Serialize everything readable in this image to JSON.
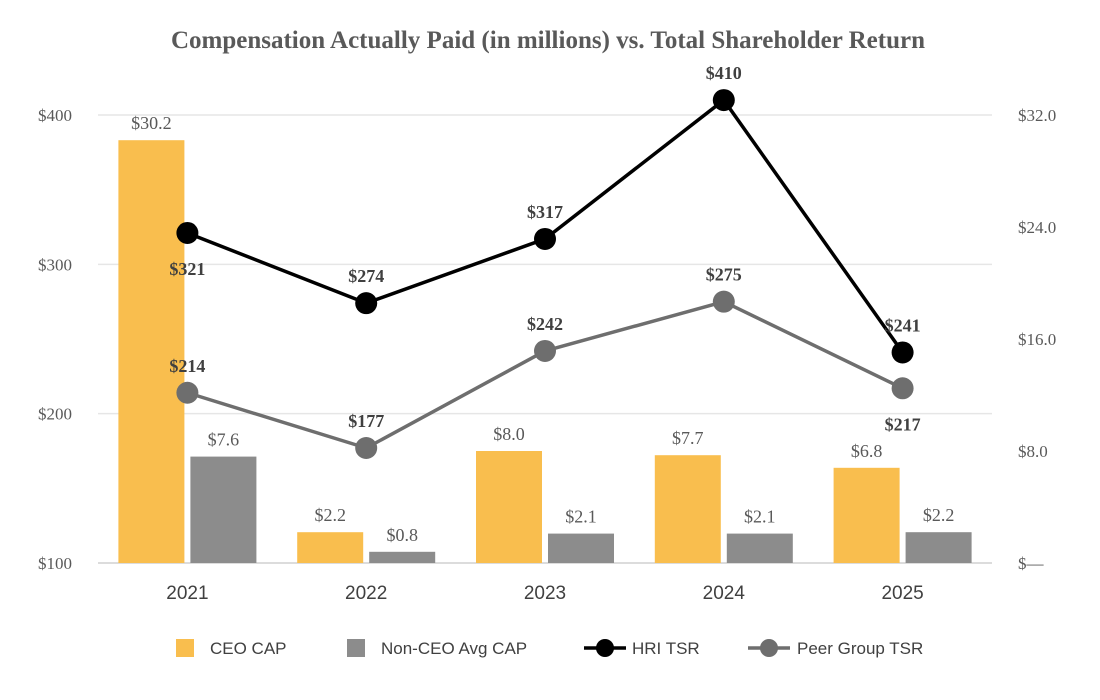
{
  "chart_data": {
    "type": "bar",
    "title": "Compensation Actually Paid (in millions) vs. Total Shareholder Return",
    "categories": [
      "2021",
      "2022",
      "2023",
      "2024",
      "2025"
    ],
    "left_axis": {
      "range": [
        100,
        400
      ],
      "ticks": [
        100,
        200,
        300,
        400
      ],
      "tick_labels": [
        "$100",
        "$200",
        "$300",
        "$400"
      ]
    },
    "right_axis": {
      "range": [
        0,
        32
      ],
      "ticks": [
        0,
        8,
        16,
        24,
        32
      ],
      "tick_labels": [
        "$—",
        "$8.0",
        "$16.0",
        "$24.0",
        "$32.0"
      ]
    },
    "bar_series": [
      {
        "name": "CEO CAP",
        "color": "#F9BE4E",
        "values": [
          30.2,
          2.2,
          8.0,
          7.7,
          6.8
        ],
        "labels": [
          "$30.2",
          "$2.2",
          "$8.0",
          "$7.7",
          "$6.8"
        ]
      },
      {
        "name": "Non-CEO Avg CAP",
        "color": "#8C8C8C",
        "values": [
          7.6,
          0.8,
          2.1,
          2.1,
          2.2
        ],
        "labels": [
          "$7.6",
          "$0.8",
          "$2.1",
          "$2.1",
          "$2.2"
        ]
      }
    ],
    "line_series": [
      {
        "name": "HRI TSR",
        "color": "#000000",
        "values": [
          321,
          274,
          317,
          410,
          241
        ],
        "labels": [
          "$321",
          "$274",
          "$317",
          "$410",
          "$241"
        ],
        "label_side": [
          "below",
          "above",
          "above",
          "above",
          "above"
        ]
      },
      {
        "name": "Peer Group TSR",
        "color": "#6E6E6E",
        "values": [
          214,
          177,
          242,
          275,
          217
        ],
        "labels": [
          "$214",
          "$177",
          "$242",
          "$275",
          "$217"
        ],
        "label_side": [
          "above",
          "above",
          "above",
          "above",
          "below"
        ]
      }
    ],
    "grid": true,
    "legend_position": "bottom"
  }
}
